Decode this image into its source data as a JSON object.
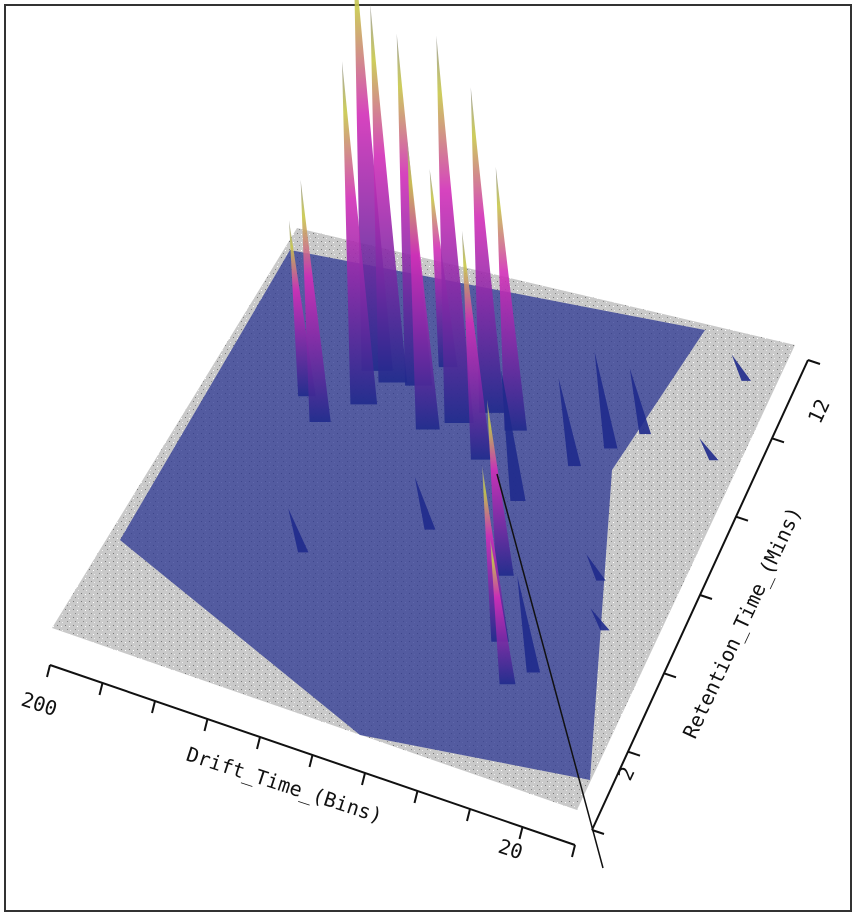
{
  "chart_data": {
    "type": "surface3d",
    "title": "",
    "xlabel": "Drift_Time_(Bins)",
    "ylabel": "Retention_Time_(Mins)",
    "x_tick_labels": [
      "200",
      "20"
    ],
    "y_tick_labels": [
      "2",
      "12"
    ],
    "xlim": [
      0,
      210
    ],
    "ylim": [
      0,
      13
    ],
    "grid": false,
    "legend": "none",
    "colormap": [
      "#1f2a8c",
      "#8a2aa8",
      "#d22fb8",
      "#c8c84a",
      "#9a9a9a"
    ],
    "background_noise_color": "#bdbdbd",
    "peaks": [
      {
        "x": 150,
        "y": 9.6,
        "h": 0.97
      },
      {
        "x": 142,
        "y": 9.4,
        "h": 0.86
      },
      {
        "x": 132,
        "y": 9.5,
        "h": 0.8
      },
      {
        "x": 148,
        "y": 8.6,
        "h": 0.78
      },
      {
        "x": 120,
        "y": 8.4,
        "h": 0.66
      },
      {
        "x": 110,
        "y": 8.8,
        "h": 0.88
      },
      {
        "x": 100,
        "y": 9.3,
        "h": 0.74
      },
      {
        "x": 95,
        "y": 8.0,
        "h": 0.52
      },
      {
        "x": 160,
        "y": 7.8,
        "h": 0.55
      },
      {
        "x": 170,
        "y": 8.4,
        "h": 0.4
      },
      {
        "x": 88,
        "y": 9.0,
        "h": 0.6
      },
      {
        "x": 125,
        "y": 10.2,
        "h": 0.45
      },
      {
        "x": 60,
        "y": 8.5,
        "h": 0.2
      },
      {
        "x": 50,
        "y": 9.2,
        "h": 0.22
      },
      {
        "x": 40,
        "y": 9.8,
        "h": 0.15
      },
      {
        "x": 74,
        "y": 7.2,
        "h": 0.3
      },
      {
        "x": 65,
        "y": 5.2,
        "h": 0.4
      },
      {
        "x": 55,
        "y": 3.5,
        "h": 0.4
      },
      {
        "x": 45,
        "y": 2.5,
        "h": 0.33
      },
      {
        "x": 38,
        "y": 3.0,
        "h": 0.22
      },
      {
        "x": 30,
        "y": 5.8,
        "h": 0.06
      },
      {
        "x": 20,
        "y": 4.6,
        "h": 0.05
      },
      {
        "x": 10,
        "y": 9.6,
        "h": 0.05
      },
      {
        "x": 12,
        "y": 11.8,
        "h": 0.06
      },
      {
        "x": 100,
        "y": 5.8,
        "h": 0.12
      },
      {
        "x": 140,
        "y": 4.2,
        "h": 0.1
      }
    ]
  }
}
